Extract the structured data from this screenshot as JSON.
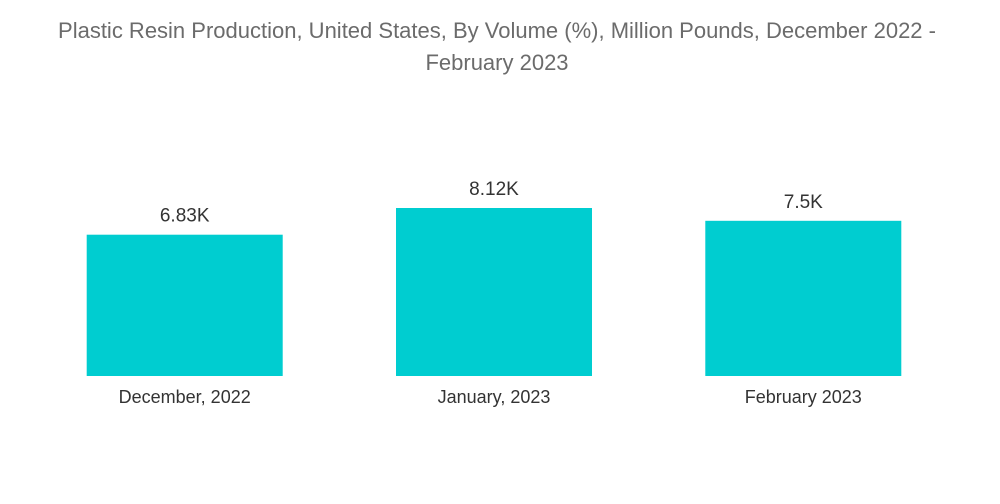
{
  "chart_data": {
    "type": "bar",
    "title_lines": [
      "Plastic Resin Production, United States, By Volume (%), Million Pounds, December 2022 -",
      "February 2023"
    ],
    "categories": [
      "December, 2022",
      "January, 2023",
      "February 2023"
    ],
    "values": [
      6830,
      8120,
      7500
    ],
    "value_labels": [
      "6.83K",
      "8.12K",
      "7.5K"
    ],
    "xlabel": "",
    "ylabel": "",
    "ylim": [
      0,
      8120
    ],
    "grid": false,
    "legend": "none",
    "colors": {
      "bar": "#00cdd0",
      "title": "#6b6b6b",
      "text": "#333333"
    }
  }
}
